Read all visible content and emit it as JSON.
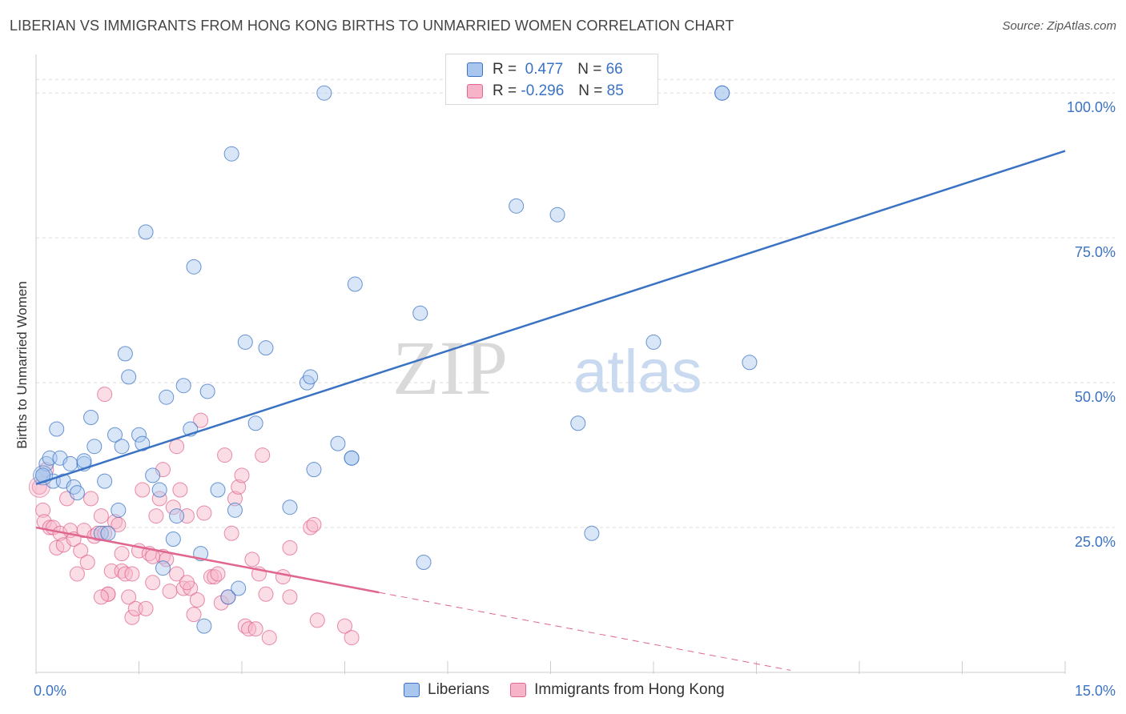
{
  "title": "LIBERIAN VS IMMIGRANTS FROM HONG KONG BIRTHS TO UNMARRIED WOMEN CORRELATION CHART",
  "source": "Source: ZipAtlas.com",
  "watermark": {
    "zip": "ZIP",
    "atlas": "atlas"
  },
  "colors": {
    "blue": "#3a72c4",
    "blue_fill": "#a9c7ee",
    "pink": "#e0668f",
    "pink_fill": "#f7b3c8",
    "grid": "#dddddd"
  },
  "legend": {
    "rows": [
      {
        "r_label": "R =",
        "r_value": "0.477",
        "n_label": "N =",
        "n_value": "66"
      },
      {
        "r_label": "R =",
        "r_value": "-0.296",
        "n_label": "N =",
        "n_value": "85"
      }
    ],
    "series": [
      "Liberians",
      "Immigrants from Hong Kong"
    ]
  },
  "chart_data": {
    "type": "scatter",
    "title": "LIBERIAN VS IMMIGRANTS FROM HONG KONG BIRTHS TO UNMARRIED WOMEN CORRELATION CHART",
    "xlabel": "",
    "ylabel": "Births to Unmarried Women",
    "xlim": [
      0,
      15
    ],
    "ylim": [
      0,
      105
    ],
    "x_tick_labels": [
      "0.0%",
      "15.0%"
    ],
    "y_tick_labels": [
      "100.0%",
      "75.0%",
      "50.0%",
      "25.0%"
    ],
    "y_ticks": [
      100,
      75,
      50,
      25
    ],
    "grid": true,
    "legend_position": "top-center",
    "series": [
      {
        "name": "Liberians",
        "trend": {
          "x0": 0.0,
          "y0": 32.5,
          "x1": 15.0,
          "y1": 90.0,
          "extend_to": 15.0
        },
        "points": [
          [
            0.1,
            34
          ],
          [
            0.1,
            34
          ],
          [
            0.15,
            36
          ],
          [
            0.2,
            37
          ],
          [
            0.25,
            33
          ],
          [
            0.3,
            42
          ],
          [
            0.35,
            37
          ],
          [
            0.4,
            33
          ],
          [
            0.5,
            36
          ],
          [
            0.55,
            32
          ],
          [
            0.6,
            31
          ],
          [
            0.7,
            36
          ],
          [
            0.7,
            36.5
          ],
          [
            0.8,
            44
          ],
          [
            0.85,
            39
          ],
          [
            0.95,
            24
          ],
          [
            1.0,
            33
          ],
          [
            1.05,
            24
          ],
          [
            1.15,
            41
          ],
          [
            1.2,
            28
          ],
          [
            1.25,
            39
          ],
          [
            1.3,
            55
          ],
          [
            1.35,
            51
          ],
          [
            1.5,
            41
          ],
          [
            1.55,
            39.5
          ],
          [
            1.6,
            76
          ],
          [
            1.7,
            34
          ],
          [
            1.8,
            31.5
          ],
          [
            1.85,
            18
          ],
          [
            1.9,
            47.5
          ],
          [
            2.0,
            23
          ],
          [
            2.05,
            27
          ],
          [
            2.15,
            49.5
          ],
          [
            2.25,
            42
          ],
          [
            2.3,
            70
          ],
          [
            2.4,
            20.5
          ],
          [
            2.45,
            8
          ],
          [
            2.5,
            48.5
          ],
          [
            2.65,
            31.5
          ],
          [
            2.8,
            13
          ],
          [
            2.85,
            89.5
          ],
          [
            2.9,
            28
          ],
          [
            2.95,
            14.5
          ],
          [
            3.05,
            57
          ],
          [
            3.2,
            43
          ],
          [
            3.35,
            56
          ],
          [
            3.7,
            28.5
          ],
          [
            3.95,
            50
          ],
          [
            4.0,
            51
          ],
          [
            4.05,
            35
          ],
          [
            4.2,
            100
          ],
          [
            4.4,
            39.5
          ],
          [
            4.6,
            37
          ],
          [
            4.6,
            37
          ],
          [
            4.65,
            67
          ],
          [
            5.6,
            62
          ],
          [
            5.65,
            19
          ],
          [
            7.0,
            80.5
          ],
          [
            7.6,
            79
          ],
          [
            7.9,
            43
          ],
          [
            8.1,
            24
          ],
          [
            9.0,
            57
          ],
          [
            10.0,
            100
          ],
          [
            10.0,
            100
          ],
          [
            10.4,
            53.5
          ],
          [
            0.1,
            34
          ]
        ]
      },
      {
        "name": "Immigrants from Hong Kong",
        "trend": {
          "x0": 0.0,
          "y0": 25.0,
          "x1": 5.0,
          "y1": 13.8,
          "extend_to": 11.0
        },
        "points": [
          [
            0.05,
            32
          ],
          [
            0.1,
            28
          ],
          [
            0.12,
            26
          ],
          [
            0.15,
            35
          ],
          [
            0.2,
            25
          ],
          [
            0.25,
            25
          ],
          [
            0.3,
            21.5
          ],
          [
            0.35,
            24
          ],
          [
            0.4,
            22
          ],
          [
            0.45,
            30
          ],
          [
            0.5,
            24.5
          ],
          [
            0.55,
            23
          ],
          [
            0.6,
            17
          ],
          [
            0.65,
            21
          ],
          [
            0.7,
            24.5
          ],
          [
            0.75,
            19
          ],
          [
            0.8,
            30
          ],
          [
            0.85,
            23.5
          ],
          [
            0.9,
            24
          ],
          [
            0.95,
            27
          ],
          [
            1.0,
            48
          ],
          [
            1.0,
            24
          ],
          [
            1.05,
            13.5
          ],
          [
            1.05,
            13.5
          ],
          [
            1.1,
            17.5
          ],
          [
            1.15,
            26
          ],
          [
            1.2,
            25.5
          ],
          [
            1.25,
            20.5
          ],
          [
            1.25,
            17.5
          ],
          [
            1.3,
            17
          ],
          [
            1.35,
            13
          ],
          [
            1.4,
            17
          ],
          [
            1.4,
            9.5
          ],
          [
            1.45,
            11
          ],
          [
            1.5,
            21
          ],
          [
            1.55,
            31.5
          ],
          [
            1.6,
            11
          ],
          [
            1.65,
            20.5
          ],
          [
            1.7,
            15.5
          ],
          [
            1.75,
            27
          ],
          [
            1.8,
            30
          ],
          [
            1.85,
            20
          ],
          [
            1.85,
            35
          ],
          [
            1.9,
            19.5
          ],
          [
            1.95,
            14
          ],
          [
            2.0,
            28.5
          ],
          [
            2.05,
            17
          ],
          [
            2.05,
            39
          ],
          [
            2.1,
            31.5
          ],
          [
            2.15,
            14.5
          ],
          [
            2.2,
            27
          ],
          [
            2.25,
            14.5
          ],
          [
            2.3,
            10
          ],
          [
            2.35,
            12.5
          ],
          [
            2.4,
            43.5
          ],
          [
            2.45,
            27.5
          ],
          [
            2.55,
            16.5
          ],
          [
            2.6,
            16.5
          ],
          [
            2.65,
            17
          ],
          [
            2.7,
            12
          ],
          [
            2.75,
            37.5
          ],
          [
            2.8,
            13
          ],
          [
            2.85,
            24
          ],
          [
            2.9,
            30
          ],
          [
            2.95,
            32
          ],
          [
            3.0,
            34
          ],
          [
            3.05,
            8
          ],
          [
            3.1,
            7.5
          ],
          [
            3.15,
            19.5
          ],
          [
            3.2,
            7.5
          ],
          [
            3.3,
            37.5
          ],
          [
            3.35,
            13.5
          ],
          [
            3.4,
            6
          ],
          [
            3.6,
            16.5
          ],
          [
            3.7,
            13
          ],
          [
            3.7,
            21.5
          ],
          [
            4.0,
            25
          ],
          [
            4.05,
            25.5
          ],
          [
            4.1,
            9
          ],
          [
            4.5,
            8
          ],
          [
            4.6,
            6
          ],
          [
            3.25,
            17
          ],
          [
            2.2,
            15.5
          ],
          [
            1.7,
            20
          ],
          [
            0.95,
            13
          ]
        ]
      }
    ]
  }
}
